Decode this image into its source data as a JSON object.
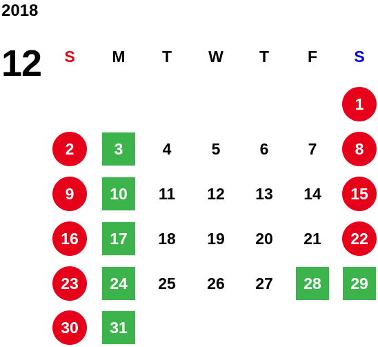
{
  "calendar": {
    "year": "2018",
    "month": "12",
    "weekdays": [
      {
        "label": "S",
        "color": "#e60012"
      },
      {
        "label": "M",
        "color": "#000000"
      },
      {
        "label": "T",
        "color": "#000000"
      },
      {
        "label": "W",
        "color": "#000000"
      },
      {
        "label": "T",
        "color": "#000000"
      },
      {
        "label": "F",
        "color": "#000000"
      },
      {
        "label": "S",
        "color": "#0000e6"
      }
    ],
    "colors": {
      "holiday_circle": "#e60019",
      "closed_square": "#3cb44b",
      "normal_text": "#000000"
    },
    "days": [
      {
        "day": "1",
        "type": "holiday"
      },
      {
        "day": "2",
        "type": "holiday"
      },
      {
        "day": "3",
        "type": "closed"
      },
      {
        "day": "4",
        "type": "normal"
      },
      {
        "day": "5",
        "type": "normal"
      },
      {
        "day": "6",
        "type": "normal"
      },
      {
        "day": "7",
        "type": "normal"
      },
      {
        "day": "8",
        "type": "holiday"
      },
      {
        "day": "9",
        "type": "holiday"
      },
      {
        "day": "10",
        "type": "closed"
      },
      {
        "day": "11",
        "type": "normal"
      },
      {
        "day": "12",
        "type": "normal"
      },
      {
        "day": "13",
        "type": "normal"
      },
      {
        "day": "14",
        "type": "normal"
      },
      {
        "day": "15",
        "type": "holiday"
      },
      {
        "day": "16",
        "type": "holiday"
      },
      {
        "day": "17",
        "type": "closed"
      },
      {
        "day": "18",
        "type": "normal"
      },
      {
        "day": "19",
        "type": "normal"
      },
      {
        "day": "20",
        "type": "normal"
      },
      {
        "day": "21",
        "type": "normal"
      },
      {
        "day": "22",
        "type": "holiday"
      },
      {
        "day": "23",
        "type": "holiday"
      },
      {
        "day": "24",
        "type": "closed"
      },
      {
        "day": "25",
        "type": "normal"
      },
      {
        "day": "26",
        "type": "normal"
      },
      {
        "day": "27",
        "type": "normal"
      },
      {
        "day": "28",
        "type": "closed"
      },
      {
        "day": "29",
        "type": "closed"
      },
      {
        "day": "30",
        "type": "holiday"
      },
      {
        "day": "31",
        "type": "closed"
      }
    ]
  }
}
